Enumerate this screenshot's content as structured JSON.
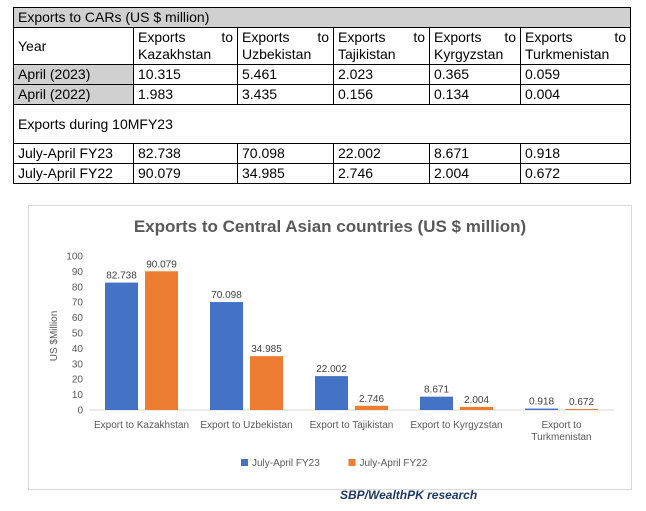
{
  "table": {
    "title": "Exports to CARs (US $ million)",
    "header": {
      "year": "Year",
      "cols": [
        [
          "Exports",
          "to",
          "Kazakhstan"
        ],
        [
          "Exports",
          "to",
          "Uzbekistan"
        ],
        [
          "Exports",
          "to",
          "Tajikistan"
        ],
        [
          "Exports",
          "to",
          "Kyrgyzstan"
        ],
        [
          "Exports",
          "to",
          "Turkmenistan"
        ]
      ]
    },
    "monthly_rows": [
      {
        "label": "April (2023)",
        "values": [
          "10.315",
          "5.461",
          "2.023",
          "0.365",
          "0.059"
        ]
      },
      {
        "label": "April (2022)",
        "values": [
          "1.983",
          "3.435",
          "0.156",
          "0.134",
          "0.004"
        ]
      }
    ],
    "section_label": "Exports during 10MFY23",
    "period_rows": [
      {
        "label": "July-April FY23",
        "values": [
          "82.738",
          "70.098",
          "22.002",
          "8.671",
          "0.918"
        ]
      },
      {
        "label": "July-April FY22",
        "values": [
          "90.079",
          "34.985",
          "2.746",
          "2.004",
          "0.672"
        ]
      }
    ]
  },
  "chart_data": {
    "type": "bar",
    "title": "Exports to Central Asian countries (US $ million)",
    "ylabel": "US $Million",
    "xlabel": "",
    "ylim": [
      0,
      100
    ],
    "yticks": [
      0,
      10,
      20,
      30,
      40,
      50,
      60,
      70,
      80,
      90,
      100
    ],
    "categories": [
      [
        "Export to Kazakhstan"
      ],
      [
        "Export to Uzbekistan"
      ],
      [
        "Export to Tajikistan"
      ],
      [
        "Export to Kyrgyzstan"
      ],
      [
        "Export to",
        "Turkmenistan"
      ]
    ],
    "series": [
      {
        "name": "July-April FY23",
        "color": "#4472c4",
        "values": [
          82.738,
          70.098,
          22.002,
          8.671,
          0.918
        ]
      },
      {
        "name": "July-April FY22",
        "color": "#ed7d31",
        "values": [
          90.079,
          34.985,
          2.746,
          2.004,
          0.672
        ]
      }
    ],
    "legend_position": "bottom",
    "grid": false
  },
  "source_note": "SBP/WealthPK research"
}
